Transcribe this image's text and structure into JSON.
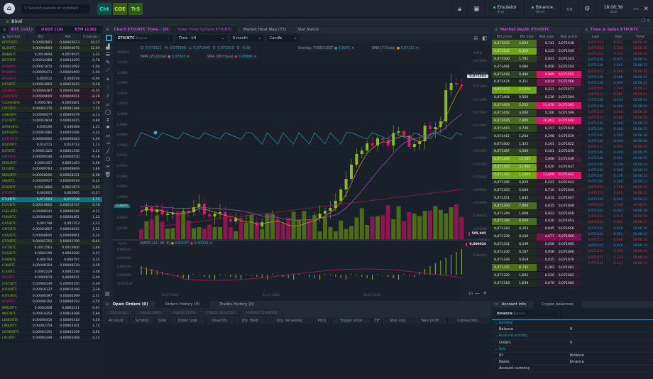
{
  "topbar": {
    "search_placeholder": "Search panels or symbols",
    "quick_buttons": [
      {
        "label": "Cht",
        "bg": "#0b4f4b",
        "fg": "#35d6c4"
      },
      {
        "label": "COE",
        "bg": "#3a5b16",
        "fg": "#b7e64a"
      },
      {
        "label": "TrS",
        "bg": "#2d5a1a",
        "fg": "#8ee04a"
      }
    ],
    "connections": [
      {
        "name": "Emulator",
        "latency": "8 ms"
      },
      {
        "name": "Binance",
        "latency": "38 ms"
      }
    ],
    "clock": {
      "time": "18:06:38",
      "zone": "Local"
    }
  },
  "workspace": {
    "title": "Bind"
  },
  "watchlist": {
    "tabs": [
      "BTC (141)",
      "USDT (18)",
      "ETH (139)"
    ],
    "columns": [
      "Symbol",
      "Bid",
      "Ask",
      "Change..."
    ],
    "rows": [
      [
        "BCPT/BTC",
        "0,00002801",
        "0,00002813",
        "10,27",
        "g",
        "rowg"
      ],
      [
        "BLZ/BTC",
        "0,00004864",
        "0,00004876",
        "12,69",
        "g",
        "rowg"
      ],
      [
        "BNB/BTC",
        "0,0019894",
        "0,0019915",
        "3,25",
        "g",
        ""
      ],
      [
        "BNT/BTC",
        "0,00034388",
        "0,00034459",
        "0,76",
        "g",
        ""
      ],
      [
        "BQX/BTC",
        "0,00021072",
        "0,00021092",
        "-1,04",
        "r",
        ""
      ],
      [
        "BRD/BTC",
        "0,00006471",
        "0,00006490",
        "-1,09",
        "r",
        ""
      ],
      [
        "BTG/BTC",
        "0,004512",
        "0,004519",
        "-0,04",
        "r",
        ""
      ],
      [
        "BTS/BTC",
        "0,00003002",
        "0,00003015",
        "9,28",
        "g",
        "rowg"
      ],
      [
        "CDT/BTC",
        "0,00000387",
        "0,00000388",
        "-6,05",
        "r",
        "rowr"
      ],
      [
        "CHAT/BTC",
        "0,00000609",
        "0,00000611",
        "-8,28",
        "r",
        "rowr"
      ],
      [
        "CLOAK/BTC",
        "0,0005781",
        "0,0005801",
        "3,78",
        "g",
        ""
      ],
      [
        "CMT/BTC",
        "0,00002370",
        "0,00002384",
        "7,25",
        "g",
        "rowg"
      ],
      [
        "CND/BTC",
        "0,00000477",
        "0,00000479",
        "2,13",
        "g",
        ""
      ],
      [
        "CVC/BTC",
        "0,00002814",
        "0,00002815",
        "4,80",
        "g",
        ""
      ],
      [
        "DASH/BTC",
        "0,036192",
        "0,036264",
        "1,21",
        "g",
        ""
      ],
      [
        "DATA/BTC",
        "0,00001085",
        "0,00001086",
        "4,32",
        "g",
        ""
      ],
      [
        "DENT/BTC",
        "0,00000062",
        "0,00000063",
        "-1,59",
        "r",
        ""
      ],
      [
        "DGD/BTC",
        "0,014711",
        "0,014712",
        "1,72",
        "g",
        ""
      ],
      [
        "DLT/BTC",
        "0,00001326",
        "0,00001330",
        "1,22",
        "g",
        ""
      ],
      [
        "DNT/BTC",
        "0,00000549",
        "0,00000550",
        "-0,18",
        "r",
        ""
      ],
      [
        "EDO/BTC",
        "0,0001457",
        "0,0001463",
        "2,96",
        "g",
        ""
      ],
      [
        "ELF/BTC",
        "0,00009783",
        "0,00009809",
        "1,89",
        "g",
        ""
      ],
      [
        "ENG/BTC",
        "0,00028296",
        "0,00028321",
        "6,08",
        "g",
        "rowg"
      ],
      [
        "ENJ/BTC",
        "0,00000917",
        "0,00000919",
        "0,22",
        "g",
        ""
      ],
      [
        "EOS/BTC",
        "0,0011860",
        "0,0011873",
        "5,93",
        "g",
        "rowg"
      ],
      [
        "ETC/BTC",
        "0,002601",
        "0,002605",
        "-0,27",
        "r",
        ""
      ],
      [
        "ETH/BTC",
        "0,071503",
        "0,071538",
        "1,71",
        "g",
        "rowsel"
      ],
      [
        "EVX/BTC",
        "0,00010665",
        "0,00010747",
        "6,76",
        "g",
        "rowg"
      ],
      [
        "FUEL/BTC",
        "0,00000541",
        "0,00000546",
        "4,21",
        "g",
        ""
      ],
      [
        "FUN/BTC",
        "0,00000400",
        "0,00000401",
        "1,52",
        "g",
        ""
      ],
      [
        "GAS/BTC",
        "0,001748",
        "0,001753",
        "2,22",
        "g",
        ""
      ],
      [
        "GNT/BTC",
        "0,00004607",
        "0,00004615",
        "1,52",
        "g",
        ""
      ],
      [
        "GRS/BTC",
        "0,00008945",
        "0,00008961",
        "1,24",
        "g",
        ""
      ],
      [
        "GTO/BTC",
        "0,00002791",
        "0,00002798",
        "8,45",
        "g",
        "rowg"
      ],
      [
        "GVT/BTC",
        "0,0012561",
        "0,0012600",
        "2,60",
        "g",
        ""
      ],
      [
        "GXS/BTC",
        "0,0004199",
        "0,0004200",
        "2,51",
        "g",
        ""
      ],
      [
        "HSR/BTC",
        "0,000793",
        "0,000797",
        "3,25",
        "g",
        ""
      ],
      [
        "ICN/BTC",
        "0,00009154",
        "0,00009229",
        "4,59",
        "g",
        ""
      ],
      [
        "ICX/BTC",
        "0,0002229",
        "0,0002230",
        "3,00",
        "g",
        ""
      ],
      [
        "INS/BTC",
        "0,0000919",
        "0,0000921",
        "-3,46",
        "r",
        ""
      ],
      [
        "IOST/BTC",
        "0,00000349",
        "0,00000350",
        "4,49",
        "g",
        ""
      ],
      [
        "IOTA/BTC",
        "0,00016137",
        "0,00016168",
        "3,18",
        "g",
        ""
      ],
      [
        "IOTX/BTC",
        "0,00000397",
        "0,00000399",
        "2,31",
        "g",
        ""
      ],
      [
        "KEY/BTC",
        "0,00000192",
        "0,00000193",
        "-3,50",
        "r",
        ""
      ],
      [
        "KMD/BTC",
        "0,0002408",
        "0,0002411",
        "0,67",
        "g",
        ""
      ],
      [
        "KNC/BTC",
        "0,00014253",
        "0,00014298",
        "1,80",
        "g",
        ""
      ],
      [
        "LEND/BTC",
        "0,00000416",
        "0,00000418",
        "4,50",
        "g",
        ""
      ],
      [
        "LINK/BTC",
        "0,00003154",
        "0,00003161",
        "1,74",
        "g",
        ""
      ],
      [
        "LOOM/BTC",
        "0,00003191",
        "0,00003199",
        "3,60",
        "g",
        ""
      ],
      [
        "LRC/BTC",
        "0,00004349",
        "0,00004368",
        "4,12",
        "g",
        ""
      ]
    ]
  },
  "chart": {
    "tabs": [
      "Chart ETH/BTC Time - 1H",
      "Order Flow Surface ETH/BTC",
      "Market Heat Map (75)",
      "Stat Matrix"
    ],
    "symbol": "ETH/BTC",
    "exchange": "Binance",
    "timeframe": "Time - 1H",
    "range": "6 month",
    "type": "Candle",
    "mode_left": "MANUAL",
    "mode_right": "AUTO",
    "ohlc": {
      "O": "0,071511",
      "H": "0,071600",
      "L": "0,071449",
      "C": "0,071503",
      "Chg": "-0,03"
    },
    "indicators": [
      {
        "name": "Overlay: TUSD/USDT",
        "value": "0,9971",
        "dot": "#2aa0c3"
      },
      {
        "name": "SMA (7:Close)",
        "value": "0,07151",
        "dot": "#e0a030"
      },
      {
        "name": "SMA (25:Close)",
        "value": "0,07093",
        "dot": "#b05ccf"
      },
      {
        "name": "SMA (99:Close)",
        "value": "0,06996",
        "dot": "#d9236f"
      }
    ],
    "left_axis": [
      "1,0100",
      "1,0080",
      "1,0060",
      "1,0040",
      "1,0020",
      "1,0000",
      "0,9980",
      "0,9960",
      "0,9940",
      "0,9920",
      "0,9900",
      "0,9880",
      "0,9860",
      "0,9840",
      "0,9820",
      "0,9800",
      "0,9780"
    ],
    "left_marker": "0,9970",
    "right_axis": [
      "0,071800",
      "0,071600",
      "0,071400",
      "0,071200",
      "0,071000",
      "0,070800",
      "0,070600",
      "0,070400",
      "0,070200",
      "0,070000",
      "0,069800",
      "0,069600",
      "0,069400",
      "0,069200"
    ],
    "price_marker": "0,071503",
    "volume_marker": "505,995",
    "macd": {
      "label": "MACD (12: 26: 9)",
      "v1": "0,00037",
      "v2": "0,00033",
      "axis": [
        "0,000300",
        "0,000200",
        "0,000100",
        "0,000000",
        "-0,000100"
      ],
      "marker": "0,000026",
      "right_axis": "0,000200"
    },
    "dates": [
      "14.07.2018",
      "15.07.2018",
      "16.07.2018"
    ],
    "zoom_ratio": "1/1"
  },
  "market_depth": {
    "title": "Market depth ETH/BTC",
    "columns": [
      "Bid price",
      "Bid size",
      "Ask size",
      "Ask price"
    ],
    "rows": [
      [
        "0,071503",
        "4,834",
        2,
        "0,741",
        "0,071538",
        0
      ],
      [
        "0,071502",
        "8,310",
        3,
        "0,225",
        "0,071540",
        0
      ],
      [
        "0,071500",
        "1,781",
        1,
        "0,041",
        "0,071543",
        0
      ],
      [
        "0,071481",
        "0,086",
        0,
        "0,056",
        "0,071554",
        0
      ],
      [
        "0,071478",
        "0,490",
        1,
        "9,969",
        "0,071555",
        3
      ],
      [
        "0,071474",
        "0,311",
        0,
        "4,614",
        "0,071566",
        2
      ],
      [
        "0,071470",
        "21,070",
        3,
        "0,221",
        "0,071577",
        0
      ],
      [
        "0,071464",
        "0,500",
        0,
        "0,230",
        "0,071594",
        0
      ],
      [
        "0,071463",
        "5,252",
        2,
        "21,070",
        "0,071595",
        3
      ],
      [
        "0,071442",
        "3,000",
        1,
        "0,100",
        "0,071599",
        0
      ],
      [
        "0,071426",
        "7,000",
        2,
        "30,002",
        "0,071600",
        3
      ],
      [
        "0,071415",
        "4,720",
        1,
        "0,157",
        "0,071610",
        0
      ],
      [
        "0,071411",
        "1,264",
        0,
        "0,298",
        "0,071619",
        0
      ],
      [
        "0,071400",
        "1,325",
        0,
        "0,101",
        "0,071622",
        0
      ],
      [
        "0,071387",
        "4,000",
        1,
        "0,101",
        "0,071630",
        0
      ],
      [
        "0,071364",
        "14,585",
        3,
        "1,008",
        "0,071636",
        1
      ],
      [
        "0,071363",
        "31,600",
        3,
        "0,020",
        "0,071637",
        0
      ],
      [
        "0,071362",
        "13,609",
        3,
        "13,609",
        "0,071642",
        3
      ],
      [
        "0,071356",
        "0,020",
        0,
        "0,221",
        "0,071643",
        0
      ],
      [
        "0,071353",
        "0,020",
        0,
        "0,710",
        "0,071645",
        0
      ],
      [
        "0,071351",
        "1,835",
        0,
        "0,015",
        "0,071647",
        0
      ],
      [
        "0,071350",
        "7,000",
        2,
        "0,025",
        "0,071648",
        0
      ],
      [
        "0,071349",
        "1,008",
        0,
        "0,022",
        "0,071650",
        0
      ],
      [
        "0,071348",
        "8,000",
        2,
        "0,020",
        "0,071653",
        0
      ],
      [
        "0,071343",
        "0,203",
        0,
        "0,045",
        "0,071656",
        0
      ],
      [
        "0,071338",
        "0,100",
        0,
        "4,677",
        "0,071660",
        2
      ],
      [
        "0,071331",
        "0,249",
        0,
        "0,058",
        "0,071665",
        0
      ],
      [
        "0,071330",
        "0,167",
        0,
        "0,058",
        "0,071666",
        0
      ],
      [
        "0,071329",
        "0,019",
        0,
        "0,015",
        "0,071670",
        0
      ],
      [
        "0,071325",
        "8,745",
        2,
        "0,282",
        "0,071681",
        0
      ],
      [
        "0,071320",
        "1,602",
        0,
        "0,520",
        "0,071682",
        0
      ],
      [
        "0,071318",
        "1,639",
        0,
        "0,076",
        "0,071685",
        0
      ]
    ]
  },
  "time_sales": {
    "title": "Time & Sales ETH/BTC",
    "columns": [
      "Last",
      "Size",
      "Time"
    ],
    "rows": [
      [
        "0,071503",
        "0,063",
        "18:06:36",
        "sell"
      ],
      [
        "0,071503",
        "0,339",
        "18:06:36",
        "sell"
      ],
      [
        "0,071503",
        "0,135",
        "18:06:32",
        "sell"
      ],
      [
        "0,071538",
        "0,057",
        "18:06:32",
        "buy"
      ],
      [
        "0,071538",
        "1,045",
        "18:06:32",
        "buy"
      ],
      [
        "0,071503",
        "0,080",
        "18:06:32",
        "sell"
      ],
      [
        "0,071538",
        "0,288",
        "18:06:31",
        "buy"
      ],
      [
        "0,071538",
        "0,045",
        "18:06:31",
        "buy"
      ],
      [
        "0,071502",
        "1,690",
        "18:06:31",
        "sell"
      ],
      [
        "0,071511",
        "0,583",
        "18:06:31",
        "sell"
      ],
      [
        "0,071538",
        "0,233",
        "18:06:31",
        "buy"
      ],
      [
        "0,071538",
        "0,300",
        "18:06:29",
        "buy"
      ],
      [
        "0,071511",
        "0,064",
        "18:06:29",
        "sell"
      ],
      [
        "0,071511",
        "0,266",
        "18:06:29",
        "sell"
      ],
      [
        "0,071540",
        "0,300",
        "18:06:29",
        "buy"
      ],
      [
        "0,071540",
        "0,300",
        "18:06:27",
        "buy"
      ],
      [
        "0,071540",
        "0,300",
        "18:06:26",
        "buy"
      ],
      [
        "0,071540",
        "0,300",
        "18:06:26",
        "buy"
      ],
      [
        "0,071511",
        "0,039",
        "18:06:26",
        "sell"
      ],
      [
        "0,071540",
        "0,300",
        "18:06:25",
        "buy"
      ],
      [
        "0,071540",
        "0,001",
        "18:06:25",
        "buy"
      ],
      [
        "0,071540",
        "0,139",
        "18:06:24",
        "buy"
      ],
      [
        "0,071540",
        "0,300",
        "18:06:24",
        "buy"
      ],
      [
        "0,071540",
        "0,139",
        "18:06:23",
        "buy"
      ],
      [
        "0,071540",
        "0,300",
        "18:06:23",
        "buy"
      ],
      [
        "0,071511",
        "1,758",
        "18:06:23",
        "sell"
      ],
      [
        "0,071511",
        "0,020",
        "18:06:23",
        "sell"
      ],
      [
        "0,071540",
        "0,002",
        "18:06:22",
        "buy"
      ],
      [
        "0,071511",
        "1,528",
        "18:06:21",
        "sell"
      ],
      [
        "0,071542",
        "0,001",
        "18:06:18",
        "buy"
      ],
      [
        "0,071511",
        "0,019",
        "18:06:18",
        "sell"
      ],
      [
        "0,071511",
        "0,001",
        "18:06:17",
        "sell"
      ],
      [
        "0,071542",
        "0,020",
        "18:06:16",
        "buy"
      ],
      [
        "0,071542",
        "0,001",
        "18:06:16",
        "buy"
      ],
      [
        "0,071511",
        "0,648",
        "18:06:16",
        "sell"
      ],
      [
        "0,071544",
        "0,020",
        "18:06:15",
        "buy"
      ],
      [
        "0,071511",
        "0,193",
        "18:06:15",
        "sell"
      ],
      [
        "0,071511",
        "0,130",
        "18:06:14",
        "sell"
      ],
      [
        "0,071511",
        "0,142",
        "18:06:13",
        "sell"
      ]
    ]
  },
  "orders": {
    "tabs": [
      "Open Orders (0)",
      "Orders history (0)",
      "Trades History (0)"
    ],
    "actions": [
      "CANCEL ALL",
      "CANCEL LIMITS",
      "CANCEL STOPS",
      "CANCEL SELECTED",
      "CHANGE TO MARKET"
    ],
    "columns": [
      "Account",
      "Symbol",
      "Side",
      "Order type",
      "Quantity",
      "Qty. filled",
      "Qty. remaining",
      "Price",
      "Trigger price",
      "TIF",
      "Stop loss",
      "Take profit",
      "Connection..."
    ]
  },
  "account": {
    "tabs": [
      "Account info",
      "Crypto balances"
    ],
    "selector": {
      "name": "binance",
      "sub": "Binance"
    },
    "sections": [
      {
        "title": "General",
        "rows": [
          [
            "Balance",
            "0"
          ]
        ]
      },
      {
        "title": "Account activity",
        "rows": [
          [
            "Orders",
            "0"
          ]
        ]
      },
      {
        "title": "Info",
        "rows": [
          [
            "ID",
            "binance"
          ],
          [
            "Name",
            "binance"
          ],
          [
            "Account currency",
            ""
          ]
        ]
      }
    ]
  }
}
